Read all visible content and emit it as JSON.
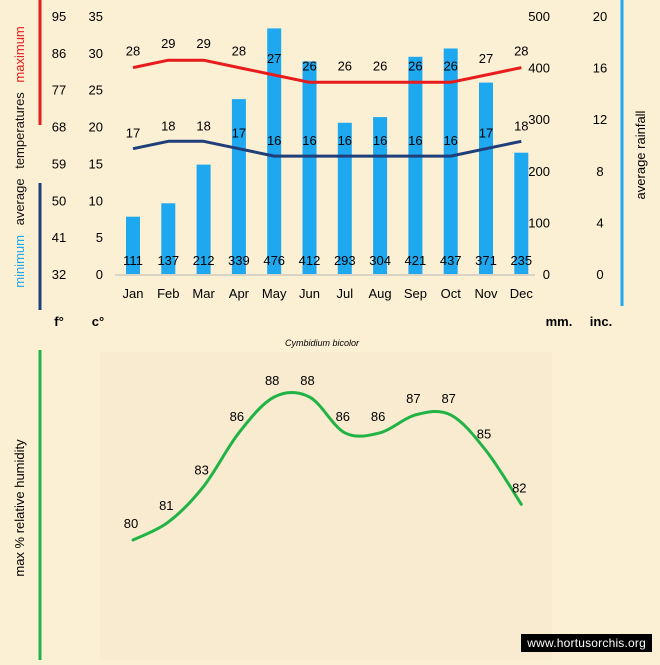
{
  "chart_data": [
    {
      "type": "bar+line",
      "title": "Cymbidium bicolor",
      "categories": [
        "Jan",
        "Feb",
        "Mar",
        "Apr",
        "May",
        "Jun",
        "Jul",
        "Aug",
        "Sep",
        "Oct",
        "Nov",
        "Dec"
      ],
      "rainfall_mm": [
        111,
        137,
        212,
        339,
        476,
        412,
        293,
        304,
        421,
        437,
        371,
        235
      ],
      "max_temp_c": [
        28,
        29,
        29,
        28,
        27,
        26,
        26,
        26,
        26,
        26,
        27,
        28
      ],
      "min_temp_c": [
        17,
        18,
        18,
        17,
        16,
        16,
        16,
        16,
        16,
        16,
        17,
        18
      ],
      "axis_c": {
        "ticks": [
          0,
          5,
          10,
          15,
          20,
          25,
          30,
          35
        ],
        "ylim": [
          0,
          35
        ],
        "unit": "c°"
      },
      "axis_f": {
        "ticks": [
          32,
          41,
          50,
          59,
          68,
          77,
          86,
          95
        ],
        "unit": "f°"
      },
      "axis_mm": {
        "ticks": [
          0,
          100,
          200,
          300,
          400,
          500
        ],
        "ylim": [
          0,
          500
        ],
        "unit": "mm."
      },
      "axis_inc": {
        "ticks": [
          0,
          4,
          8,
          12,
          16,
          20
        ],
        "unit": "inc."
      },
      "left_label": {
        "minimum": "minimum",
        "average": "average",
        "temperatures": "temperatures",
        "maximum": "maximum"
      },
      "right_label": "average rainfall",
      "colors": {
        "max": "#e81c1c",
        "min": "#1f3f7a",
        "bars": "#1ea8ef",
        "rain_axis": "#1ea8ef"
      }
    },
    {
      "type": "line",
      "categories": [
        "Jan",
        "Feb",
        "Mar",
        "Apr",
        "May",
        "Jun",
        "Jul",
        "Aug",
        "Sep",
        "Oct",
        "Nov",
        "Dec"
      ],
      "values": [
        80,
        81,
        83,
        86,
        88,
        88,
        86,
        86,
        87,
        87,
        85,
        82
      ],
      "ylabel": "max % relative humidity",
      "color": "#22b347"
    }
  ],
  "watermark": "www.hortusorchis.org"
}
